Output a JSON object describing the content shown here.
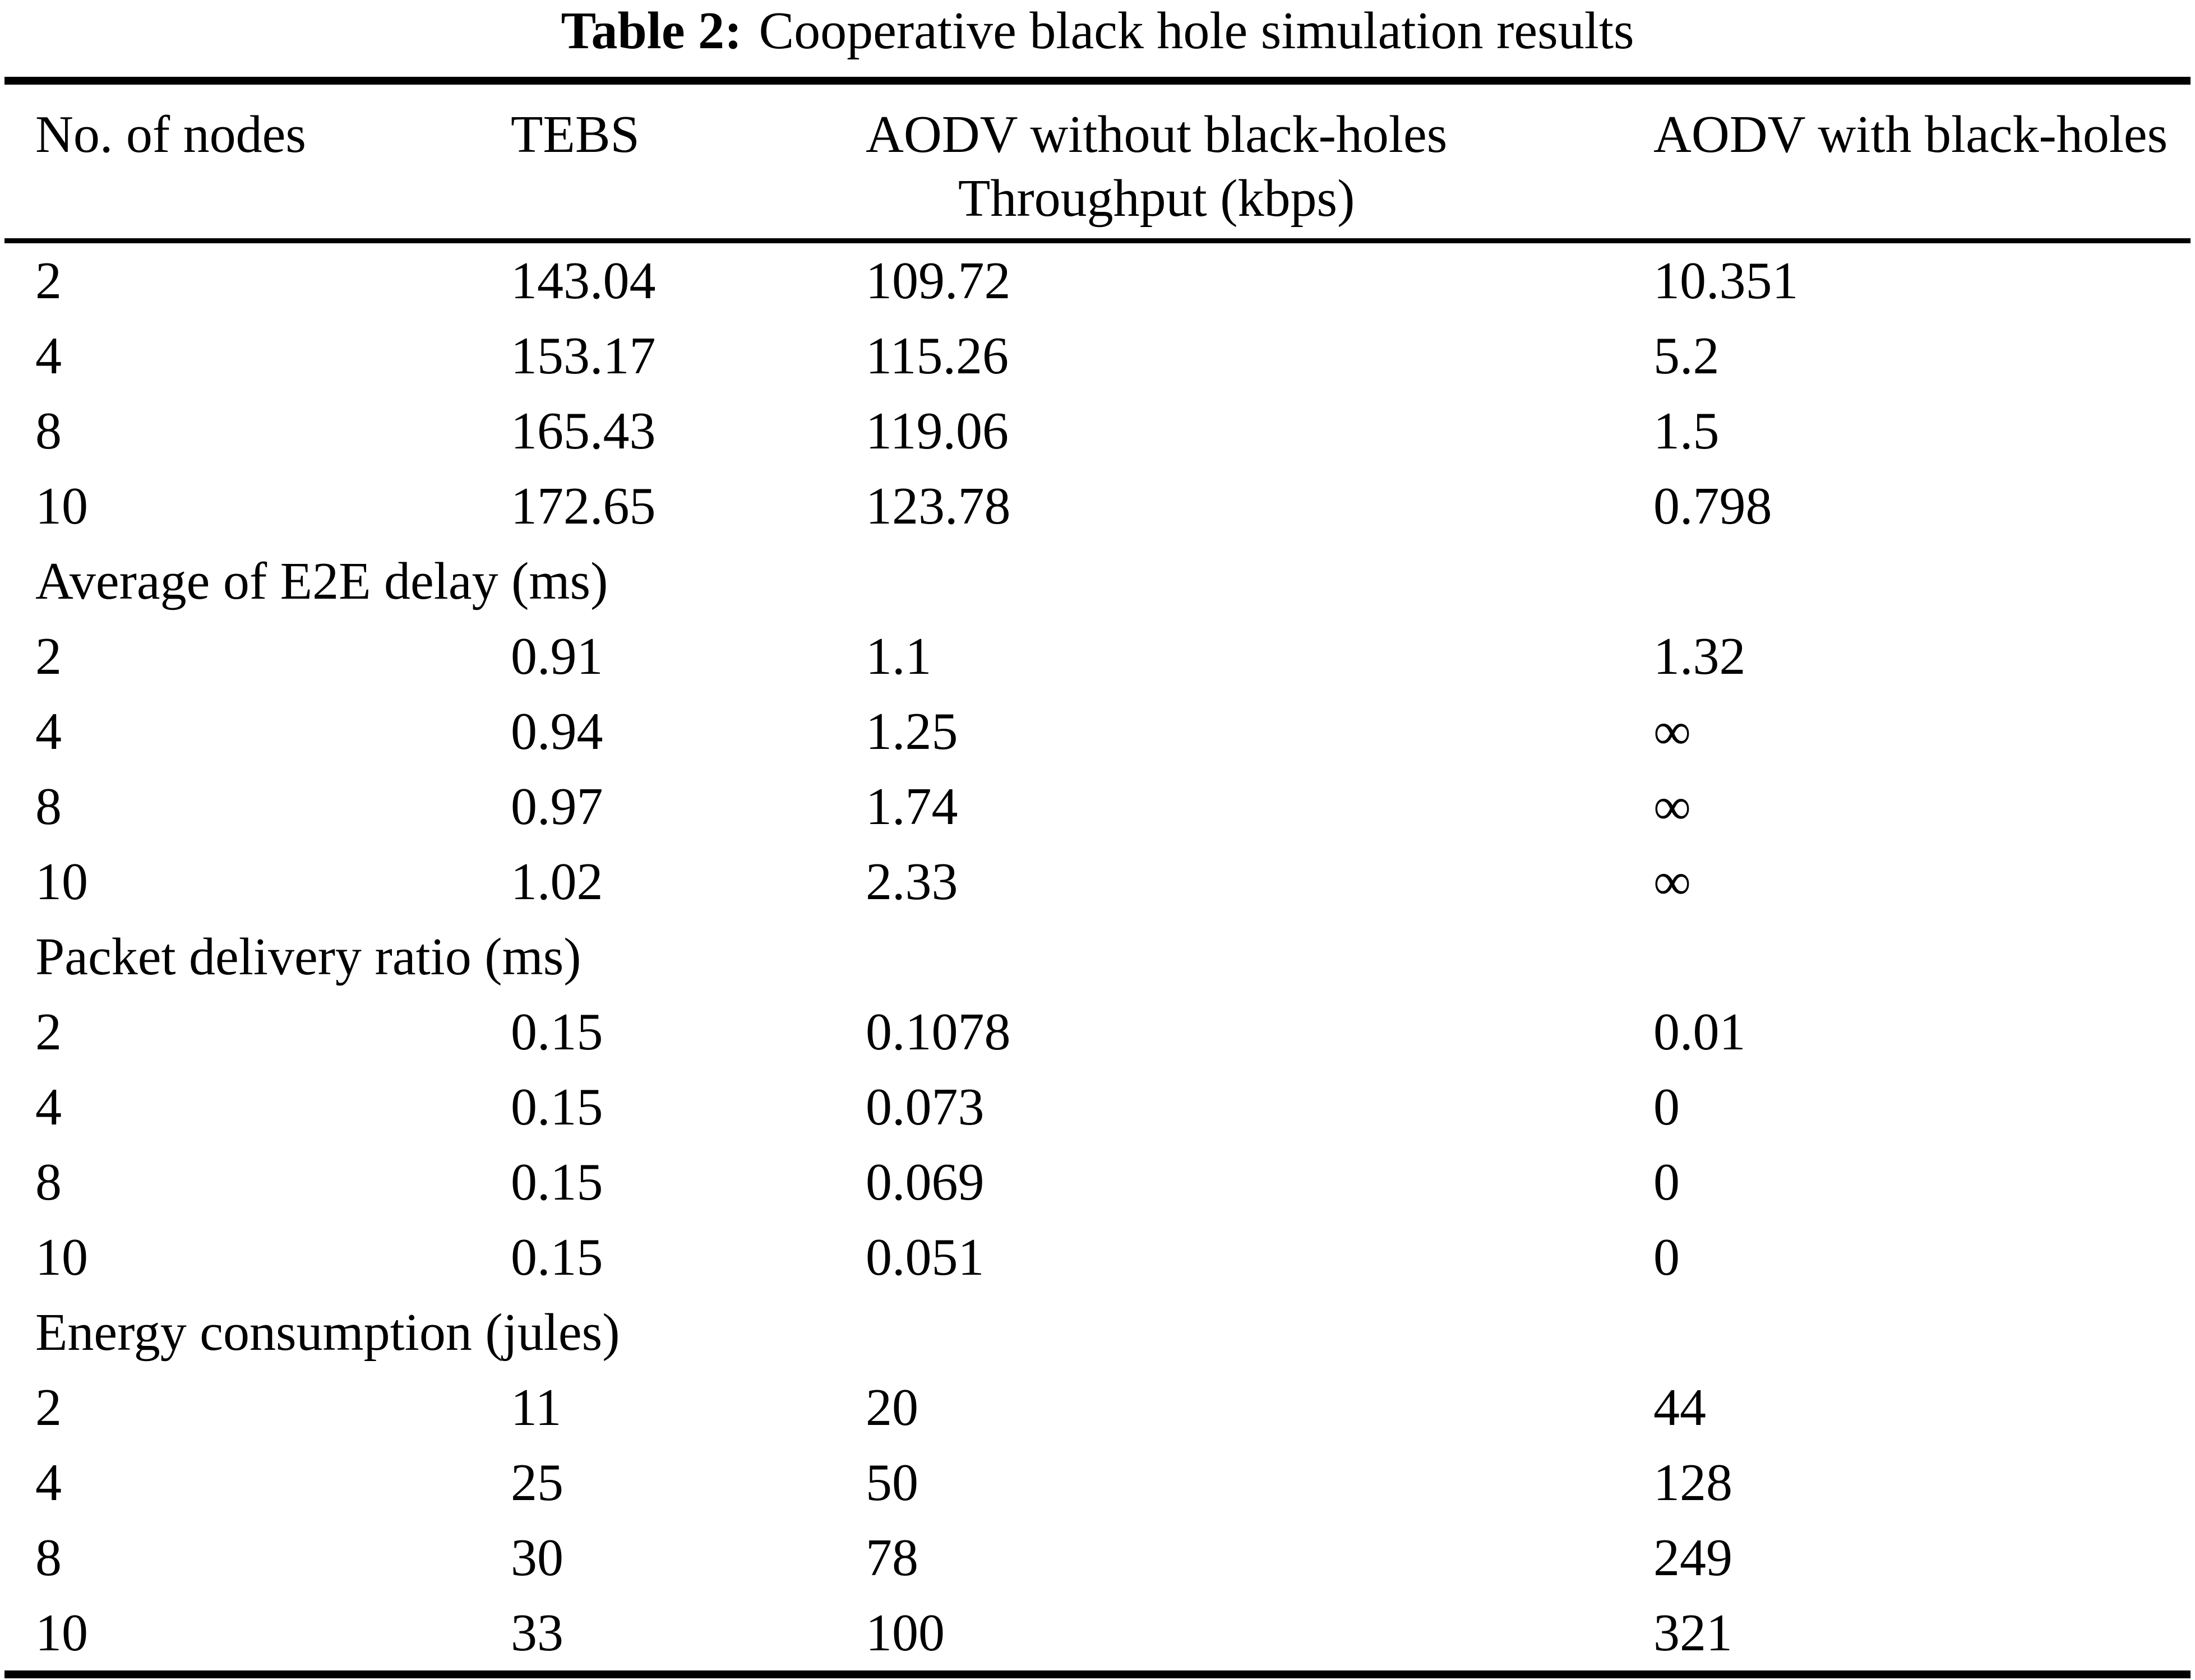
{
  "page": {
    "background_color": "#ffffff",
    "text_color": "#000000"
  },
  "title": {
    "label": "Table 2:",
    "text": "Cooperative black hole simulation results"
  },
  "table": {
    "columns": [
      "No. of nodes",
      "TEBS",
      "AODV without black-holes",
      "AODV with black-holes"
    ],
    "throughput_subheader": "Throughput (kbps)",
    "sections": [
      {
        "label": "",
        "rows": [
          [
            "2",
            "143.04",
            "109.72",
            "10.351"
          ],
          [
            "4",
            "153.17",
            "115.26",
            "5.2"
          ],
          [
            "8",
            "165.43",
            "119.06",
            "1.5"
          ],
          [
            "10",
            "172.65",
            "123.78",
            "0.798"
          ]
        ]
      },
      {
        "label": "Average of E2E delay (ms)",
        "rows": [
          [
            "2",
            "0.91",
            "1.1",
            "1.32"
          ],
          [
            "4",
            "0.94",
            "1.25",
            "∞"
          ],
          [
            "8",
            "0.97",
            "1.74",
            "∞"
          ],
          [
            "10",
            "1.02",
            "2.33",
            "∞"
          ]
        ]
      },
      {
        "label": "Packet delivery ratio (ms)",
        "rows": [
          [
            "2",
            "0.15",
            "0.1078",
            "0.01"
          ],
          [
            "4",
            "0.15",
            "0.073",
            "0"
          ],
          [
            "8",
            "0.15",
            "0.069",
            "0"
          ],
          [
            "10",
            "0.15",
            "0.051",
            "0"
          ]
        ]
      },
      {
        "label": "Energy consumption (jules)",
        "rows": [
          [
            "2",
            "11",
            "20",
            "44"
          ],
          [
            "4",
            "25",
            "50",
            "128"
          ],
          [
            "8",
            "30",
            "78",
            "249"
          ],
          [
            "10",
            "33",
            "100",
            "321"
          ]
        ]
      }
    ]
  }
}
